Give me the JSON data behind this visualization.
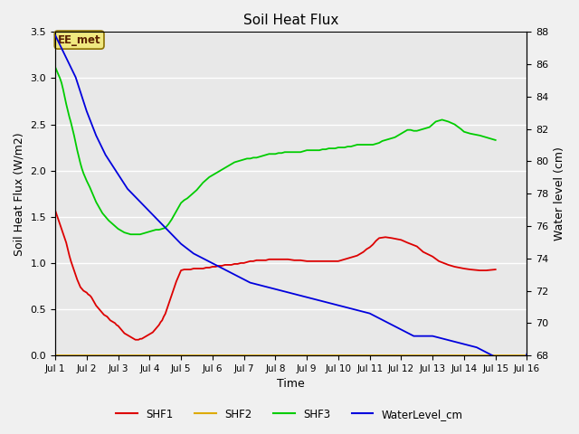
{
  "title": "Soil Heat Flux",
  "xlabel": "Time",
  "ylabel_left": "Soil Heat Flux (W/m2)",
  "ylabel_right": "Water level (cm)",
  "xlim": [
    1,
    16
  ],
  "ylim_left": [
    0.0,
    3.5
  ],
  "ylim_right": [
    68,
    88
  ],
  "yticks_left": [
    0.0,
    0.5,
    1.0,
    1.5,
    2.0,
    2.5,
    3.0,
    3.5
  ],
  "yticks_right": [
    68,
    70,
    72,
    74,
    76,
    78,
    80,
    82,
    84,
    86,
    88
  ],
  "xtick_labels": [
    "Jul 1",
    "Jul 2",
    "Jul 3",
    "Jul 4",
    "Jul 5",
    "Jul 6",
    "Jul 7",
    "Jul 8",
    "Jul 9",
    "Jul 10",
    "Jul 11",
    "Jul 12",
    "Jul 13",
    "Jul 14",
    "Jul 15",
    "Jul 16"
  ],
  "annotation_text": "EE_met",
  "shf1_color": "#dd0000",
  "shf2_color": "#ddaa00",
  "shf3_color": "#00cc00",
  "water_color": "#0000dd",
  "grid_color": "#ffffff",
  "bg_color": "#e8e8e8",
  "shf1_x": [
    1.0,
    1.05,
    1.1,
    1.15,
    1.2,
    1.25,
    1.3,
    1.35,
    1.4,
    1.45,
    1.5,
    1.55,
    1.6,
    1.65,
    1.7,
    1.75,
    1.8,
    1.85,
    1.9,
    1.95,
    2.0,
    2.05,
    2.1,
    2.15,
    2.2,
    2.25,
    2.3,
    2.35,
    2.4,
    2.45,
    2.5,
    2.55,
    2.6,
    2.65,
    2.7,
    2.75,
    2.8,
    2.85,
    2.9,
    2.95,
    3.0,
    3.05,
    3.1,
    3.15,
    3.2,
    3.25,
    3.3,
    3.35,
    3.4,
    3.45,
    3.5,
    3.55,
    3.6,
    3.65,
    3.7,
    3.75,
    3.8,
    3.85,
    3.9,
    3.95,
    4.0,
    4.05,
    4.1,
    4.15,
    4.2,
    4.25,
    4.3,
    4.35,
    4.4,
    4.45,
    4.5,
    4.55,
    4.6,
    4.65,
    4.7,
    4.75,
    4.8,
    4.85,
    4.9,
    4.95,
    5.0,
    5.1,
    5.2,
    5.3,
    5.4,
    5.5,
    5.6,
    5.7,
    5.8,
    5.9,
    6.0,
    6.1,
    6.2,
    6.3,
    6.4,
    6.5,
    6.6,
    6.7,
    6.8,
    6.9,
    7.0,
    7.1,
    7.2,
    7.3,
    7.4,
    7.5,
    7.6,
    7.7,
    7.8,
    7.9,
    8.0,
    8.2,
    8.4,
    8.6,
    8.8,
    9.0,
    9.2,
    9.4,
    9.6,
    9.8,
    10.0,
    10.2,
    10.4,
    10.5,
    10.6,
    10.7,
    10.8,
    10.9,
    11.0,
    11.1,
    11.2,
    11.3,
    11.5,
    11.7,
    12.0,
    12.2,
    12.5,
    12.7,
    13.0,
    13.2,
    13.5,
    13.7,
    14.0,
    14.2,
    14.5,
    14.7,
    15.0
  ],
  "shf1_y": [
    1.57,
    1.52,
    1.47,
    1.42,
    1.37,
    1.32,
    1.27,
    1.22,
    1.15,
    1.08,
    1.02,
    0.97,
    0.92,
    0.87,
    0.82,
    0.78,
    0.74,
    0.72,
    0.7,
    0.69,
    0.68,
    0.66,
    0.65,
    0.63,
    0.6,
    0.57,
    0.54,
    0.52,
    0.5,
    0.48,
    0.46,
    0.44,
    0.43,
    0.42,
    0.4,
    0.38,
    0.37,
    0.36,
    0.35,
    0.33,
    0.32,
    0.3,
    0.28,
    0.26,
    0.24,
    0.23,
    0.22,
    0.21,
    0.2,
    0.19,
    0.18,
    0.17,
    0.17,
    0.17,
    0.18,
    0.18,
    0.19,
    0.2,
    0.21,
    0.22,
    0.23,
    0.24,
    0.25,
    0.27,
    0.29,
    0.31,
    0.33,
    0.36,
    0.38,
    0.42,
    0.45,
    0.5,
    0.55,
    0.6,
    0.65,
    0.7,
    0.75,
    0.8,
    0.84,
    0.88,
    0.92,
    0.93,
    0.93,
    0.93,
    0.94,
    0.94,
    0.94,
    0.94,
    0.95,
    0.95,
    0.96,
    0.96,
    0.97,
    0.97,
    0.98,
    0.98,
    0.98,
    0.99,
    0.99,
    1.0,
    1.0,
    1.01,
    1.02,
    1.02,
    1.03,
    1.03,
    1.03,
    1.03,
    1.04,
    1.04,
    1.04,
    1.04,
    1.04,
    1.03,
    1.03,
    1.02,
    1.02,
    1.02,
    1.02,
    1.02,
    1.02,
    1.04,
    1.06,
    1.07,
    1.08,
    1.1,
    1.12,
    1.15,
    1.17,
    1.2,
    1.24,
    1.27,
    1.28,
    1.27,
    1.25,
    1.22,
    1.18,
    1.12,
    1.07,
    1.02,
    0.98,
    0.96,
    0.94,
    0.93,
    0.92,
    0.92,
    0.93
  ],
  "shf3_x": [
    1.0,
    1.05,
    1.1,
    1.15,
    1.2,
    1.25,
    1.3,
    1.35,
    1.4,
    1.45,
    1.5,
    1.55,
    1.6,
    1.65,
    1.7,
    1.75,
    1.8,
    1.85,
    1.9,
    1.95,
    2.0,
    2.1,
    2.2,
    2.3,
    2.4,
    2.5,
    2.6,
    2.7,
    2.8,
    2.9,
    3.0,
    3.1,
    3.2,
    3.3,
    3.4,
    3.5,
    3.6,
    3.7,
    3.8,
    3.9,
    4.0,
    4.1,
    4.2,
    4.3,
    4.4,
    4.5,
    4.6,
    4.7,
    4.8,
    4.9,
    5.0,
    5.1,
    5.2,
    5.3,
    5.4,
    5.5,
    5.6,
    5.7,
    5.8,
    5.9,
    6.0,
    6.1,
    6.2,
    6.3,
    6.4,
    6.5,
    6.6,
    6.7,
    6.8,
    6.9,
    7.0,
    7.1,
    7.2,
    7.3,
    7.4,
    7.5,
    7.6,
    7.7,
    7.8,
    7.9,
    8.0,
    8.1,
    8.2,
    8.3,
    8.4,
    8.5,
    8.6,
    8.7,
    8.8,
    8.9,
    9.0,
    9.1,
    9.2,
    9.3,
    9.4,
    9.5,
    9.6,
    9.7,
    9.8,
    9.9,
    10.0,
    10.1,
    10.2,
    10.3,
    10.4,
    10.5,
    10.6,
    10.7,
    10.8,
    10.9,
    11.0,
    11.1,
    11.2,
    11.3,
    11.4,
    11.5,
    11.6,
    11.7,
    11.8,
    11.9,
    12.0,
    12.1,
    12.2,
    12.3,
    12.4,
    12.5,
    12.6,
    12.7,
    12.8,
    12.9,
    13.0,
    13.1,
    13.2,
    13.3,
    13.4,
    13.5,
    13.7,
    13.9,
    14.0,
    14.2,
    14.5,
    14.7,
    15.0
  ],
  "shf3_y": [
    3.12,
    3.08,
    3.04,
    3.0,
    2.95,
    2.88,
    2.8,
    2.72,
    2.65,
    2.58,
    2.52,
    2.45,
    2.38,
    2.3,
    2.22,
    2.15,
    2.08,
    2.02,
    1.97,
    1.93,
    1.89,
    1.82,
    1.74,
    1.66,
    1.6,
    1.54,
    1.5,
    1.46,
    1.43,
    1.4,
    1.37,
    1.35,
    1.33,
    1.32,
    1.31,
    1.31,
    1.31,
    1.31,
    1.32,
    1.33,
    1.34,
    1.35,
    1.36,
    1.36,
    1.37,
    1.38,
    1.42,
    1.47,
    1.53,
    1.59,
    1.65,
    1.68,
    1.7,
    1.73,
    1.76,
    1.79,
    1.83,
    1.87,
    1.9,
    1.93,
    1.95,
    1.97,
    1.99,
    2.01,
    2.03,
    2.05,
    2.07,
    2.09,
    2.1,
    2.11,
    2.12,
    2.13,
    2.13,
    2.14,
    2.14,
    2.15,
    2.16,
    2.17,
    2.18,
    2.18,
    2.18,
    2.19,
    2.19,
    2.2,
    2.2,
    2.2,
    2.2,
    2.2,
    2.2,
    2.21,
    2.22,
    2.22,
    2.22,
    2.22,
    2.22,
    2.23,
    2.23,
    2.24,
    2.24,
    2.24,
    2.25,
    2.25,
    2.25,
    2.26,
    2.26,
    2.27,
    2.28,
    2.28,
    2.28,
    2.28,
    2.28,
    2.28,
    2.29,
    2.3,
    2.32,
    2.33,
    2.34,
    2.35,
    2.36,
    2.38,
    2.4,
    2.42,
    2.44,
    2.44,
    2.43,
    2.43,
    2.44,
    2.45,
    2.46,
    2.47,
    2.5,
    2.53,
    2.54,
    2.55,
    2.54,
    2.53,
    2.5,
    2.45,
    2.42,
    2.4,
    2.38,
    2.36,
    2.33
  ],
  "water_x": [
    1.0,
    1.05,
    1.1,
    1.15,
    1.2,
    1.25,
    1.3,
    1.35,
    1.4,
    1.45,
    1.5,
    1.55,
    1.6,
    1.65,
    1.7,
    1.75,
    1.8,
    1.85,
    1.9,
    1.95,
    2.0,
    2.1,
    2.2,
    2.3,
    2.4,
    2.5,
    2.6,
    2.7,
    2.8,
    2.9,
    3.0,
    3.1,
    3.2,
    3.3,
    3.4,
    3.5,
    3.6,
    3.7,
    3.8,
    3.9,
    4.0,
    4.1,
    4.2,
    4.3,
    4.4,
    4.5,
    4.6,
    4.7,
    4.8,
    4.9,
    5.0,
    5.2,
    5.4,
    5.6,
    5.8,
    6.0,
    6.2,
    6.4,
    6.6,
    6.8,
    7.0,
    7.2,
    7.4,
    7.6,
    7.8,
    8.0,
    8.2,
    8.4,
    8.6,
    8.8,
    9.0,
    9.2,
    9.4,
    9.6,
    9.8,
    10.0,
    10.2,
    10.4,
    10.6,
    10.8,
    11.0,
    11.1,
    11.2,
    11.3,
    11.4,
    11.5,
    11.6,
    11.7,
    11.8,
    11.9,
    12.0,
    12.1,
    12.2,
    12.3,
    12.4,
    12.5,
    12.6,
    12.7,
    12.8,
    12.9,
    13.0,
    13.2,
    13.4,
    13.6,
    13.8,
    14.0,
    14.2,
    14.4,
    14.5,
    14.6,
    14.7,
    14.8,
    14.9,
    15.0,
    15.1,
    15.2,
    15.4,
    15.6,
    15.8,
    16.0
  ],
  "water_y": [
    87.8,
    87.6,
    87.4,
    87.2,
    87.0,
    86.8,
    86.6,
    86.4,
    86.2,
    86.0,
    85.8,
    85.6,
    85.4,
    85.2,
    84.9,
    84.6,
    84.3,
    84.0,
    83.7,
    83.4,
    83.1,
    82.6,
    82.1,
    81.6,
    81.2,
    80.8,
    80.4,
    80.1,
    79.8,
    79.5,
    79.2,
    78.9,
    78.6,
    78.3,
    78.1,
    77.9,
    77.7,
    77.5,
    77.3,
    77.1,
    76.9,
    76.7,
    76.5,
    76.3,
    76.1,
    75.9,
    75.7,
    75.5,
    75.3,
    75.1,
    74.9,
    74.6,
    74.3,
    74.1,
    73.9,
    73.7,
    73.5,
    73.3,
    73.1,
    72.9,
    72.7,
    72.5,
    72.4,
    72.3,
    72.2,
    72.1,
    72.0,
    71.9,
    71.8,
    71.7,
    71.6,
    71.5,
    71.4,
    71.3,
    71.2,
    71.1,
    71.0,
    70.9,
    70.8,
    70.7,
    70.6,
    70.5,
    70.4,
    70.3,
    70.2,
    70.1,
    70.0,
    69.9,
    69.8,
    69.7,
    69.6,
    69.5,
    69.4,
    69.3,
    69.2,
    69.2,
    69.2,
    69.2,
    69.2,
    69.2,
    69.2,
    69.1,
    69.0,
    68.9,
    68.8,
    68.7,
    68.6,
    68.5,
    68.4,
    68.3,
    68.2,
    68.1,
    68.0,
    67.9,
    67.8,
    67.7,
    67.5,
    67.3,
    67.0,
    68.1
  ]
}
